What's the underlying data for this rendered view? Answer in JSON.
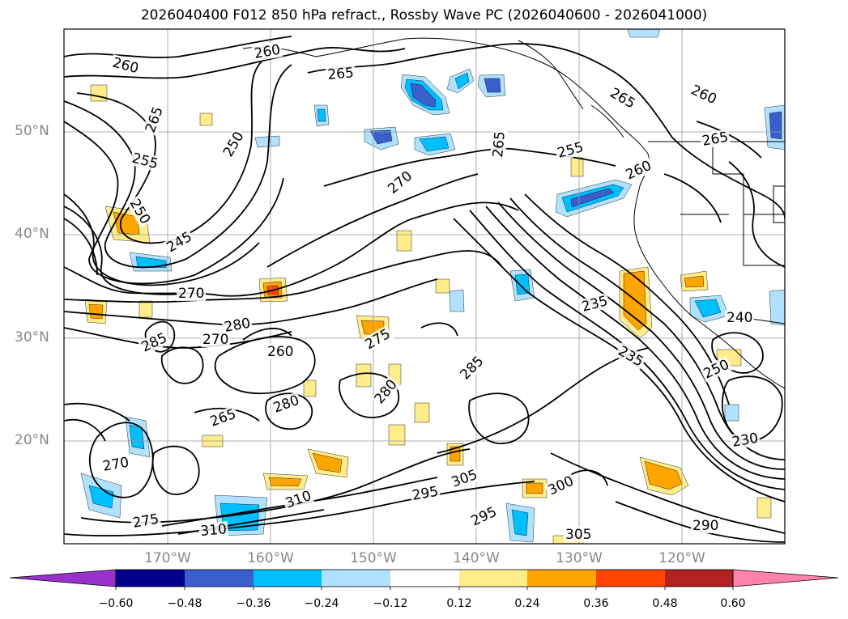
{
  "title": "2026040400 F012 850 hPa refract., Rossby Wave PC (2026040600 - 2026041000)",
  "lat_labels": [
    "50°N",
    "40°N",
    "30°N",
    "20°N"
  ],
  "lon_labels": [
    "170°W",
    "160°W",
    "150°W",
    "140°W",
    "130°W",
    "120°W"
  ],
  "contour_labels": [
    "260",
    "260",
    "265",
    "265",
    "250",
    "255",
    "250",
    "245",
    "265",
    "270",
    "285",
    "280",
    "270",
    "260",
    "275",
    "270",
    "280",
    "285",
    "280",
    "265",
    "295",
    "305",
    "310",
    "290",
    "300",
    "305",
    "295",
    "235",
    "240",
    "235",
    "250",
    "230",
    "260",
    "255",
    "265",
    "260",
    "265",
    "310",
    "270",
    "275"
  ],
  "colorbar": {
    "tick_labels": [
      "−0.60",
      "−0.48",
      "−0.36",
      "−0.24",
      "−0.12",
      "0.12",
      "0.24",
      "0.36",
      "0.48",
      "0.60"
    ],
    "colors": [
      "#9932CC",
      "#00008B",
      "#3A5FCD",
      "#00BFFF",
      "#B0E2FF",
      "#FFFFFF",
      "#FFEC8B",
      "#FFA500",
      "#FF4500",
      "#B22222",
      "#FF82AB"
    ]
  },
  "colors": {
    "strong_negative": "#3A5FCD",
    "negative": "#00BFFF",
    "weak_negative": "#B0E2FF",
    "weak_positive": "#FFEC8B",
    "positive": "#FFA500",
    "strong_positive": "#FF4500",
    "contour": "#000000",
    "grid": "#999999"
  }
}
